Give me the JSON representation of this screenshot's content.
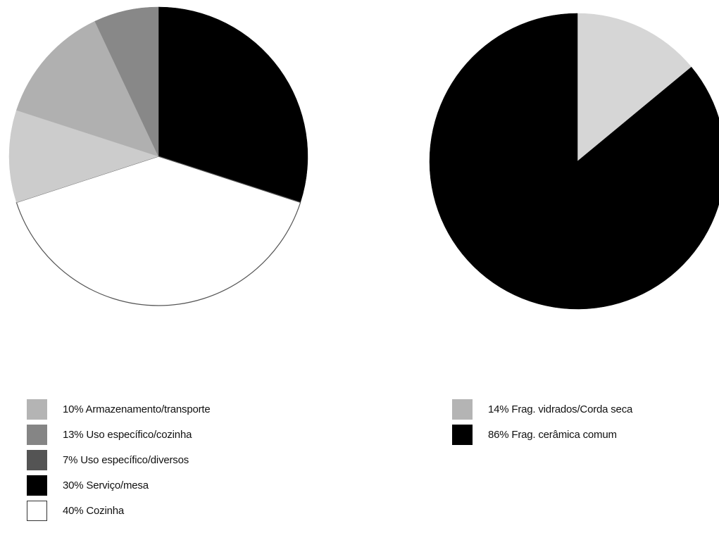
{
  "chart_data": [
    {
      "type": "pie",
      "slices": [
        {
          "label": "30% Serviço/mesa",
          "value": 30,
          "color": "#000000"
        },
        {
          "label": "40% Cozinha",
          "value": 40,
          "color": "#ffffff"
        },
        {
          "label": "10% Armazenamento/transporte",
          "value": 10,
          "color": "#cccccc"
        },
        {
          "label": "13% Uso específico/cozinha",
          "value": 13,
          "color": "#b0b0b0"
        },
        {
          "label": "7% Uso específico/diversos",
          "value": 7,
          "color": "#888888"
        }
      ],
      "legend": [
        {
          "label": "10% Armazenamento/transporte",
          "color": "#b4b4b4"
        },
        {
          "label": "13% Uso específico/cozinha",
          "color": "#858585"
        },
        {
          "label": "7% Uso específico/diversos",
          "color": "#545454"
        },
        {
          "label": "30% Serviço/mesa",
          "color": "#000000"
        },
        {
          "label": "40% Cozinha",
          "color": "#ffffff"
        }
      ],
      "start_angle": "12 o'clock, clockwise",
      "legend_position": "bottom"
    },
    {
      "type": "pie",
      "slices": [
        {
          "label": "14% Frag. vidrados/Corda seca",
          "value": 14,
          "color": "#d6d6d6"
        },
        {
          "label": "86% Frag. cerâmica comum",
          "value": 86,
          "color": "#000000"
        }
      ],
      "legend": [
        {
          "label": "14% Frag. vidrados/Corda seca",
          "color": "#b4b4b4"
        },
        {
          "label": "86% Frag. cerâmica comum",
          "color": "#000000"
        }
      ],
      "start_angle": "12 o'clock, clockwise",
      "legend_position": "bottom"
    }
  ]
}
